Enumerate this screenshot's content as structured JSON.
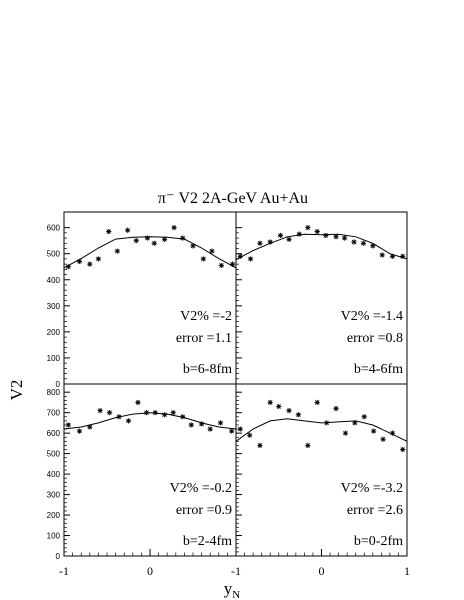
{
  "figure": {
    "title": "π⁻ V2 2A-GeV Au+Au",
    "ylabel": "V2",
    "xlabel": "y",
    "xlabel_sub": "N",
    "x_ticks": [
      "-1",
      "0",
      "1"
    ]
  },
  "chart_data": [
    {
      "type": "scatter",
      "panel": "top-left",
      "xlim": [
        -1,
        1
      ],
      "ylim": [
        0,
        660
      ],
      "y_ticks": [
        0,
        100,
        200,
        300,
        400,
        500,
        600
      ],
      "annotations": [
        "V2% =-2",
        "error =1.1",
        "b=6-8fm"
      ],
      "points": {
        "x": [
          -0.95,
          -0.82,
          -0.7,
          -0.6,
          -0.48,
          -0.38,
          -0.26,
          -0.16,
          -0.03,
          0.05,
          0.17,
          0.28,
          0.38,
          0.5,
          0.62,
          0.72,
          0.83,
          0.96
        ],
        "y": [
          450,
          470,
          460,
          480,
          585,
          510,
          590,
          550,
          560,
          540,
          555,
          600,
          560,
          530,
          480,
          510,
          455,
          460
        ]
      },
      "curve": {
        "x": [
          -1,
          -0.8,
          -0.6,
          -0.4,
          -0.2,
          0,
          0.2,
          0.4,
          0.6,
          0.8,
          1
        ],
        "y": [
          446,
          481,
          522,
          556,
          563,
          565,
          563,
          556,
          522,
          481,
          446
        ]
      }
    },
    {
      "type": "scatter",
      "panel": "top-right",
      "xlim": [
        -1,
        1
      ],
      "ylim": [
        0,
        660
      ],
      "y_ticks": [
        0,
        100,
        200,
        300,
        400,
        500,
        600
      ],
      "annotations": [
        "V2% =-1.4",
        "error =0.8",
        "b=4-6fm"
      ],
      "points": {
        "x": [
          -0.95,
          -0.83,
          -0.72,
          -0.6,
          -0.48,
          -0.38,
          -0.26,
          -0.16,
          -0.05,
          0.05,
          0.17,
          0.27,
          0.38,
          0.49,
          0.6,
          0.71,
          0.83,
          0.95
        ],
        "y": [
          490,
          480,
          540,
          545,
          570,
          555,
          575,
          600,
          585,
          570,
          565,
          560,
          545,
          540,
          530,
          495,
          490,
          490
        ]
      },
      "curve": {
        "x": [
          -1,
          -0.8,
          -0.6,
          -0.4,
          -0.2,
          0,
          0.2,
          0.4,
          0.6,
          0.8,
          1
        ],
        "y": [
          477,
          512,
          540,
          565,
          575,
          573,
          575,
          565,
          540,
          500,
          480
        ]
      }
    },
    {
      "type": "scatter",
      "panel": "bottom-left",
      "xlim": [
        -1,
        1
      ],
      "ylim": [
        0,
        840
      ],
      "y_ticks": [
        0,
        100,
        200,
        300,
        400,
        500,
        600,
        700,
        800
      ],
      "annotations": [
        "V2% =-0.2",
        "error =0.9",
        "b=2-4fm"
      ],
      "points": {
        "x": [
          -0.95,
          -0.82,
          -0.7,
          -0.58,
          -0.47,
          -0.36,
          -0.25,
          -0.14,
          -0.04,
          0.06,
          0.17,
          0.27,
          0.38,
          0.48,
          0.6,
          0.7,
          0.82,
          0.95
        ],
        "y": [
          640,
          610,
          630,
          710,
          700,
          680,
          660,
          750,
          700,
          700,
          690,
          700,
          680,
          640,
          645,
          620,
          650,
          610
        ]
      },
      "curve": {
        "x": [
          -1,
          -0.8,
          -0.6,
          -0.4,
          -0.2,
          0,
          0.2,
          0.4,
          0.6,
          0.8,
          1
        ],
        "y": [
          620,
          630,
          650,
          676,
          693,
          700,
          693,
          676,
          650,
          630,
          620
        ]
      }
    },
    {
      "type": "scatter",
      "panel": "bottom-right",
      "xlim": [
        -1,
        1
      ],
      "ylim": [
        0,
        840
      ],
      "y_ticks": [
        0,
        100,
        200,
        300,
        400,
        500,
        600,
        700,
        800
      ],
      "annotations": [
        "V2% =-3.2",
        "error =2.6",
        "b=0-2fm"
      ],
      "points": {
        "x": [
          -0.95,
          -0.84,
          -0.72,
          -0.6,
          -0.5,
          -0.38,
          -0.27,
          -0.16,
          -0.05,
          0.06,
          0.17,
          0.28,
          0.39,
          0.5,
          0.61,
          0.72,
          0.83,
          0.95
        ],
        "y": [
          620,
          590,
          540,
          750,
          730,
          710,
          690,
          540,
          750,
          650,
          720,
          600,
          650,
          680,
          610,
          570,
          600,
          520
        ]
      },
      "curve": {
        "x": [
          -1,
          -0.8,
          -0.6,
          -0.4,
          -0.2,
          0,
          0.2,
          0.4,
          0.6,
          0.8,
          1
        ],
        "y": [
          560,
          620,
          660,
          670,
          660,
          650,
          655,
          660,
          640,
          600,
          560
        ]
      }
    }
  ]
}
